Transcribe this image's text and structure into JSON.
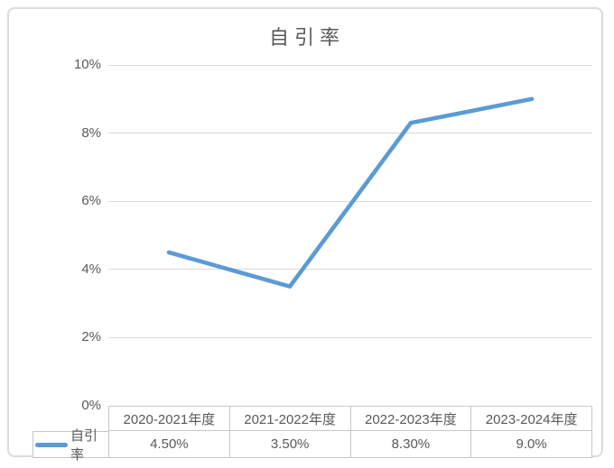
{
  "chart_data": {
    "type": "line",
    "title": "自引率",
    "categories": [
      "2020-2021年度",
      "2021-2022年度",
      "2022-2023年度",
      "2023-2024年度"
    ],
    "series": [
      {
        "name": "自引率",
        "values": [
          4.5,
          3.5,
          8.3,
          9.0
        ],
        "display_values": [
          "4.50%",
          "3.50%",
          "8.30%",
          "9.0%"
        ],
        "color": "#5B9BD5"
      }
    ],
    "xlabel": "",
    "ylabel": "",
    "ylim": [
      0,
      10
    ],
    "yticks": [
      0,
      2,
      4,
      6,
      8,
      10
    ],
    "ytick_labels": [
      "0%",
      "2%",
      "4%",
      "6%",
      "8%",
      "10%"
    ],
    "grid": true,
    "legend_position": "data-table-left",
    "data_table": true
  },
  "colors": {
    "line": "#5B9BD5",
    "gridline": "#d9d9d9",
    "table_border": "#c8c8c8",
    "text": "#595959",
    "frame_border": "#dbdbdb"
  }
}
